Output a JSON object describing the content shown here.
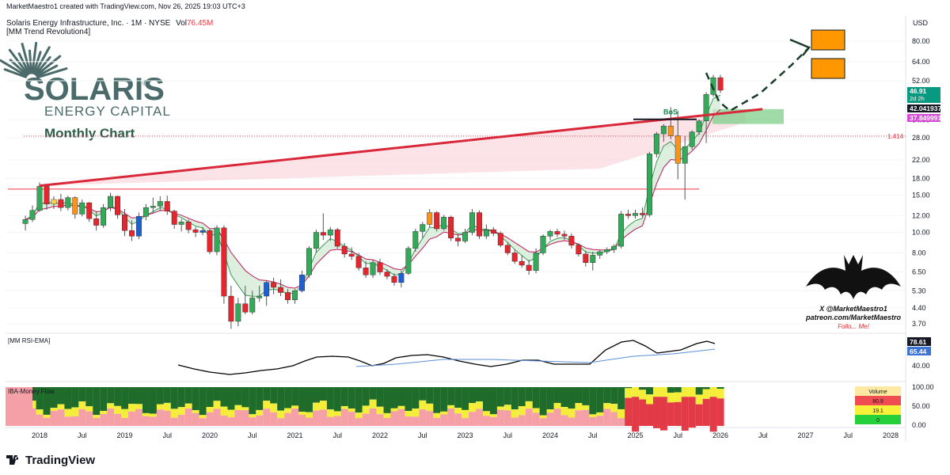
{
  "header": {
    "created_line": "MarketMaestro1 created with TradingView.com, Nov 26, 2025 19:03 UTC+3",
    "symbol_line": "Solaris Energy Infrastructure, Inc. · 1M · NYSE",
    "vol_label": "Vol",
    "vol_value": "76.45M",
    "indicator_main": "[MM Trend Revolution4]"
  },
  "logo": {
    "word": "SOLARIS",
    "reg_mark": "®",
    "sub": "ENERGY CAPITAL",
    "chart_label": "Monthly Chart"
  },
  "watermark": {
    "line1": "X @MarketMaestro1",
    "line2": "patreon.com/MarketMaestro",
    "line3": "Follo... Me!"
  },
  "footer": {
    "brand": "TradingView"
  },
  "chart_data": {
    "type": "candlestick",
    "currency": "USD",
    "y_scale": "log",
    "y_ticks": [
      "80.00",
      "64.00",
      "52.00",
      "34.00",
      "28.00",
      "22.00",
      "18.00",
      "15.00",
      "12.00",
      "10.00",
      "8.00",
      "6.50",
      "5.30",
      "4.40",
      "3.70"
    ],
    "x_ticks": [
      "2018",
      "Jul",
      "2019",
      "Jul",
      "2020",
      "Jul",
      "2021",
      "Jul",
      "2022",
      "Jul",
      "2023",
      "Jul",
      "2024",
      "Jul",
      "2025",
      "Jul",
      "2026",
      "Jul",
      "2027",
      "Jul",
      "2028"
    ],
    "price_badges": [
      {
        "value": "46.91",
        "sub": "2d 2h",
        "color": "#089981"
      },
      {
        "value": "42.041937",
        "color": "#131722"
      },
      {
        "value": "37.849991",
        "color": "#d64bd6"
      }
    ],
    "level_label": "1.414",
    "annotation": "BoS",
    "candles": [
      {
        "c": "2017-11",
        "o": 11.0,
        "h": 12.0,
        "l": 10.2,
        "cl": 11.5
      },
      {
        "c": "2017-12",
        "o": 11.5,
        "h": 13.4,
        "l": 11.2,
        "cl": 12.7
      },
      {
        "c": "2018-01",
        "o": 12.7,
        "h": 17.2,
        "l": 12.5,
        "cl": 16.5
      },
      {
        "c": "2018-02",
        "o": 16.5,
        "h": 16.8,
        "l": 12.8,
        "cl": 13.6
      },
      {
        "c": "2018-03",
        "o": 13.6,
        "h": 14.8,
        "l": 12.9,
        "cl": 14.3
      },
      {
        "c": "2018-04",
        "o": 14.3,
        "h": 15.2,
        "l": 12.6,
        "cl": 13.1
      },
      {
        "c": "2018-05",
        "o": 13.1,
        "h": 14.9,
        "l": 12.7,
        "cl": 14.6
      },
      {
        "c": "2018-06",
        "o": 14.6,
        "h": 14.8,
        "l": 11.6,
        "cl": 12.2
      },
      {
        "c": "2018-07",
        "o": 12.2,
        "h": 14.3,
        "l": 11.9,
        "cl": 13.8
      },
      {
        "c": "2018-08",
        "o": 13.8,
        "h": 13.9,
        "l": 11.2,
        "cl": 11.6
      },
      {
        "c": "2018-09",
        "o": 11.6,
        "h": 12.6,
        "l": 10.2,
        "cl": 10.8
      },
      {
        "c": "2018-10",
        "o": 10.8,
        "h": 13.6,
        "l": 10.5,
        "cl": 13.1
      },
      {
        "c": "2018-11",
        "o": 13.1,
        "h": 15.4,
        "l": 12.6,
        "cl": 14.8
      },
      {
        "c": "2018-12",
        "o": 14.8,
        "h": 14.9,
        "l": 11.6,
        "cl": 12.1
      },
      {
        "c": "2019-01",
        "o": 12.1,
        "h": 12.9,
        "l": 9.6,
        "cl": 10.2
      },
      {
        "c": "2019-02",
        "o": 10.2,
        "h": 11.4,
        "l": 9.1,
        "cl": 9.6
      },
      {
        "c": "2019-03",
        "o": 9.6,
        "h": 12.4,
        "l": 9.3,
        "cl": 11.9
      },
      {
        "c": "2019-04",
        "o": 11.9,
        "h": 13.6,
        "l": 11.4,
        "cl": 13.1
      },
      {
        "c": "2019-05",
        "o": 13.1,
        "h": 14.6,
        "l": 12.3,
        "cl": 13.3
      },
      {
        "c": "2019-06",
        "o": 13.3,
        "h": 14.8,
        "l": 12.6,
        "cl": 14.0
      },
      {
        "c": "2019-07",
        "o": 14.0,
        "h": 14.9,
        "l": 12.1,
        "cl": 12.6
      },
      {
        "c": "2019-08",
        "o": 12.6,
        "h": 12.8,
        "l": 10.4,
        "cl": 10.9
      },
      {
        "c": "2019-09",
        "o": 10.9,
        "h": 11.6,
        "l": 10.1,
        "cl": 11.2
      },
      {
        "c": "2019-10",
        "o": 11.2,
        "h": 11.5,
        "l": 9.9,
        "cl": 10.3
      },
      {
        "c": "2019-11",
        "o": 10.3,
        "h": 10.6,
        "l": 9.5,
        "cl": 10.0
      },
      {
        "c": "2019-12",
        "o": 10.0,
        "h": 10.6,
        "l": 9.7,
        "cl": 10.2
      },
      {
        "c": "2020-01",
        "o": 10.2,
        "h": 10.4,
        "l": 7.9,
        "cl": 8.1
      },
      {
        "c": "2020-02",
        "o": 8.1,
        "h": 10.8,
        "l": 7.8,
        "cl": 10.5
      },
      {
        "c": "2020-03",
        "o": 10.5,
        "h": 10.8,
        "l": 4.6,
        "cl": 5.0
      },
      {
        "c": "2020-04",
        "o": 5.0,
        "h": 5.6,
        "l": 3.5,
        "cl": 3.8
      },
      {
        "c": "2020-05",
        "o": 3.8,
        "h": 4.9,
        "l": 3.6,
        "cl": 4.6
      },
      {
        "c": "2020-06",
        "o": 4.6,
        "h": 5.6,
        "l": 4.1,
        "cl": 4.2
      },
      {
        "c": "2020-07",
        "o": 4.2,
        "h": 5.3,
        "l": 4.1,
        "cl": 4.9
      },
      {
        "c": "2020-08",
        "o": 4.9,
        "h": 5.6,
        "l": 4.7,
        "cl": 5.0
      },
      {
        "c": "2020-09",
        "o": 5.0,
        "h": 5.9,
        "l": 4.5,
        "cl": 5.8
      },
      {
        "c": "2020-10",
        "o": 5.8,
        "h": 6.1,
        "l": 5.1,
        "cl": 5.5
      },
      {
        "c": "2020-11",
        "o": 5.5,
        "h": 6.0,
        "l": 5.0,
        "cl": 5.2
      },
      {
        "c": "2020-12",
        "o": 5.2,
        "h": 5.4,
        "l": 4.6,
        "cl": 4.8
      },
      {
        "c": "2021-01",
        "o": 4.8,
        "h": 5.4,
        "l": 4.6,
        "cl": 5.3
      },
      {
        "c": "2021-02",
        "o": 5.3,
        "h": 6.6,
        "l": 5.2,
        "cl": 6.3
      },
      {
        "c": "2021-03",
        "o": 6.3,
        "h": 8.6,
        "l": 6.1,
        "cl": 8.4
      },
      {
        "c": "2021-04",
        "o": 8.4,
        "h": 10.3,
        "l": 8.0,
        "cl": 10.0
      },
      {
        "c": "2021-05",
        "o": 10.0,
        "h": 12.3,
        "l": 9.2,
        "cl": 9.7
      },
      {
        "c": "2021-06",
        "o": 9.7,
        "h": 10.6,
        "l": 9.1,
        "cl": 10.3
      },
      {
        "c": "2021-07",
        "o": 10.3,
        "h": 10.5,
        "l": 8.4,
        "cl": 8.6
      },
      {
        "c": "2021-08",
        "o": 8.6,
        "h": 8.9,
        "l": 7.6,
        "cl": 7.9
      },
      {
        "c": "2021-09",
        "o": 7.9,
        "h": 8.5,
        "l": 7.4,
        "cl": 7.7
      },
      {
        "c": "2021-10",
        "o": 7.7,
        "h": 8.0,
        "l": 6.6,
        "cl": 6.8
      },
      {
        "c": "2021-11",
        "o": 6.8,
        "h": 7.3,
        "l": 6.1,
        "cl": 6.3
      },
      {
        "c": "2021-12",
        "o": 6.3,
        "h": 7.4,
        "l": 6.1,
        "cl": 7.2
      },
      {
        "c": "2022-01",
        "o": 7.2,
        "h": 7.5,
        "l": 6.3,
        "cl": 6.5
      },
      {
        "c": "2022-02",
        "o": 6.5,
        "h": 6.7,
        "l": 6.0,
        "cl": 6.2
      },
      {
        "c": "2022-03",
        "o": 6.2,
        "h": 6.4,
        "l": 5.6,
        "cl": 5.8
      },
      {
        "c": "2022-04",
        "o": 5.8,
        "h": 6.6,
        "l": 5.5,
        "cl": 6.4
      },
      {
        "c": "2022-05",
        "o": 6.4,
        "h": 8.6,
        "l": 6.3,
        "cl": 8.4
      },
      {
        "c": "2022-06",
        "o": 8.4,
        "h": 10.4,
        "l": 8.1,
        "cl": 10.1
      },
      {
        "c": "2022-07",
        "o": 10.1,
        "h": 11.2,
        "l": 9.4,
        "cl": 10.9
      },
      {
        "c": "2022-08",
        "o": 10.9,
        "h": 12.9,
        "l": 10.6,
        "cl": 12.4
      },
      {
        "c": "2022-09",
        "o": 12.4,
        "h": 12.6,
        "l": 10.1,
        "cl": 10.4
      },
      {
        "c": "2022-10",
        "o": 10.4,
        "h": 12.1,
        "l": 10.2,
        "cl": 11.8
      },
      {
        "c": "2022-11",
        "o": 11.8,
        "h": 12.0,
        "l": 9.1,
        "cl": 9.4
      },
      {
        "c": "2022-12",
        "o": 9.4,
        "h": 9.8,
        "l": 8.6,
        "cl": 9.1
      },
      {
        "c": "2023-01",
        "o": 9.1,
        "h": 10.4,
        "l": 8.9,
        "cl": 10.0
      },
      {
        "c": "2023-02",
        "o": 10.0,
        "h": 12.9,
        "l": 9.7,
        "cl": 12.4
      },
      {
        "c": "2023-03",
        "o": 12.4,
        "h": 12.7,
        "l": 9.3,
        "cl": 9.6
      },
      {
        "c": "2023-04",
        "o": 9.6,
        "h": 10.9,
        "l": 9.3,
        "cl": 10.3
      },
      {
        "c": "2023-05",
        "o": 10.3,
        "h": 10.6,
        "l": 9.6,
        "cl": 9.9
      },
      {
        "c": "2023-06",
        "o": 9.9,
        "h": 10.1,
        "l": 8.5,
        "cl": 8.7
      },
      {
        "c": "2023-07",
        "o": 8.7,
        "h": 9.0,
        "l": 7.8,
        "cl": 8.0
      },
      {
        "c": "2023-08",
        "o": 8.0,
        "h": 8.3,
        "l": 7.1,
        "cl": 7.3
      },
      {
        "c": "2023-09",
        "o": 7.3,
        "h": 7.8,
        "l": 6.8,
        "cl": 7.0
      },
      {
        "c": "2023-10",
        "o": 7.0,
        "h": 7.4,
        "l": 6.3,
        "cl": 6.6
      },
      {
        "c": "2023-11",
        "o": 6.6,
        "h": 8.4,
        "l": 6.4,
        "cl": 8.0
      },
      {
        "c": "2023-12",
        "o": 8.0,
        "h": 9.8,
        "l": 7.8,
        "cl": 9.6
      },
      {
        "c": "2024-01",
        "o": 9.6,
        "h": 10.3,
        "l": 9.2,
        "cl": 10.1
      },
      {
        "c": "2024-02",
        "o": 10.1,
        "h": 10.4,
        "l": 9.5,
        "cl": 9.8
      },
      {
        "c": "2024-03",
        "o": 9.8,
        "h": 10.2,
        "l": 9.2,
        "cl": 9.6
      },
      {
        "c": "2024-04",
        "o": 9.6,
        "h": 9.9,
        "l": 8.4,
        "cl": 8.7
      },
      {
        "c": "2024-05",
        "o": 8.7,
        "h": 8.9,
        "l": 7.7,
        "cl": 7.9
      },
      {
        "c": "2024-06",
        "o": 7.9,
        "h": 8.2,
        "l": 6.9,
        "cl": 7.2
      },
      {
        "c": "2024-07",
        "o": 7.2,
        "h": 8.1,
        "l": 6.6,
        "cl": 7.8
      },
      {
        "c": "2024-08",
        "o": 7.8,
        "h": 8.3,
        "l": 7.5,
        "cl": 8.1
      },
      {
        "c": "2024-09",
        "o": 8.1,
        "h": 8.5,
        "l": 7.9,
        "cl": 8.3
      },
      {
        "c": "2024-10",
        "o": 8.3,
        "h": 8.8,
        "l": 8.0,
        "cl": 8.6
      },
      {
        "c": "2024-11",
        "o": 8.6,
        "h": 12.6,
        "l": 8.4,
        "cl": 12.2
      },
      {
        "c": "2024-12",
        "o": 12.2,
        "h": 12.8,
        "l": 11.6,
        "cl": 12.0
      },
      {
        "c": "2025-01",
        "o": 12.0,
        "h": 12.8,
        "l": 11.6,
        "cl": 12.3
      },
      {
        "c": "2025-02",
        "o": 12.3,
        "h": 13.1,
        "l": 11.8,
        "cl": 12.1
      },
      {
        "c": "2025-03",
        "o": 12.1,
        "h": 24.0,
        "l": 11.8,
        "cl": 23.5
      },
      {
        "c": "2025-04",
        "o": 23.5,
        "h": 29.8,
        "l": 22.6,
        "cl": 29.2
      },
      {
        "c": "2025-05",
        "o": 29.2,
        "h": 32.5,
        "l": 26.8,
        "cl": 31.8
      },
      {
        "c": "2025-06",
        "o": 31.8,
        "h": 39.0,
        "l": 27.5,
        "cl": 28.6
      },
      {
        "c": "2025-07",
        "o": 28.6,
        "h": 37.6,
        "l": 17.8,
        "cl": 21.2
      },
      {
        "c": "2025-08",
        "o": 21.2,
        "h": 28.5,
        "l": 14.3,
        "cl": 25.4
      },
      {
        "c": "2025-09",
        "o": 25.4,
        "h": 30.4,
        "l": 24.6,
        "cl": 29.8
      },
      {
        "c": "2025-10",
        "o": 29.8,
        "h": 34.2,
        "l": 28.9,
        "cl": 33.6
      },
      {
        "c": "2025-11",
        "o": 33.6,
        "h": 46.0,
        "l": 26.4,
        "cl": 44.8
      },
      {
        "c": "2025-12",
        "o": 44.8,
        "h": 55.5,
        "l": 43.8,
        "cl": 53.8
      },
      {
        "c": "2026-01",
        "o": 53.8,
        "h": 55.5,
        "l": 45.5,
        "cl": 46.91
      }
    ],
    "rsi": {
      "label": "[MM RSI-EMA]",
      "rsi_value": "78.61",
      "ema_value": "65.44",
      "ticks": [
        "40.00"
      ]
    },
    "money_flow": {
      "label": "IBA-Money Flow",
      "ticks": [
        "100.00",
        "50.00",
        "0.00"
      ],
      "legend": [
        {
          "text": "Volume",
          "bg": "#fde9a2",
          "color": "#131722"
        },
        {
          "text": "80.9",
          "bg": "#f04d52",
          "color": "#131722"
        },
        {
          "text": "19.1",
          "bg": "#f7f13a",
          "color": "#131722"
        },
        {
          "text": "0",
          "bg": "#26d03a",
          "color": "#131722"
        }
      ]
    }
  }
}
